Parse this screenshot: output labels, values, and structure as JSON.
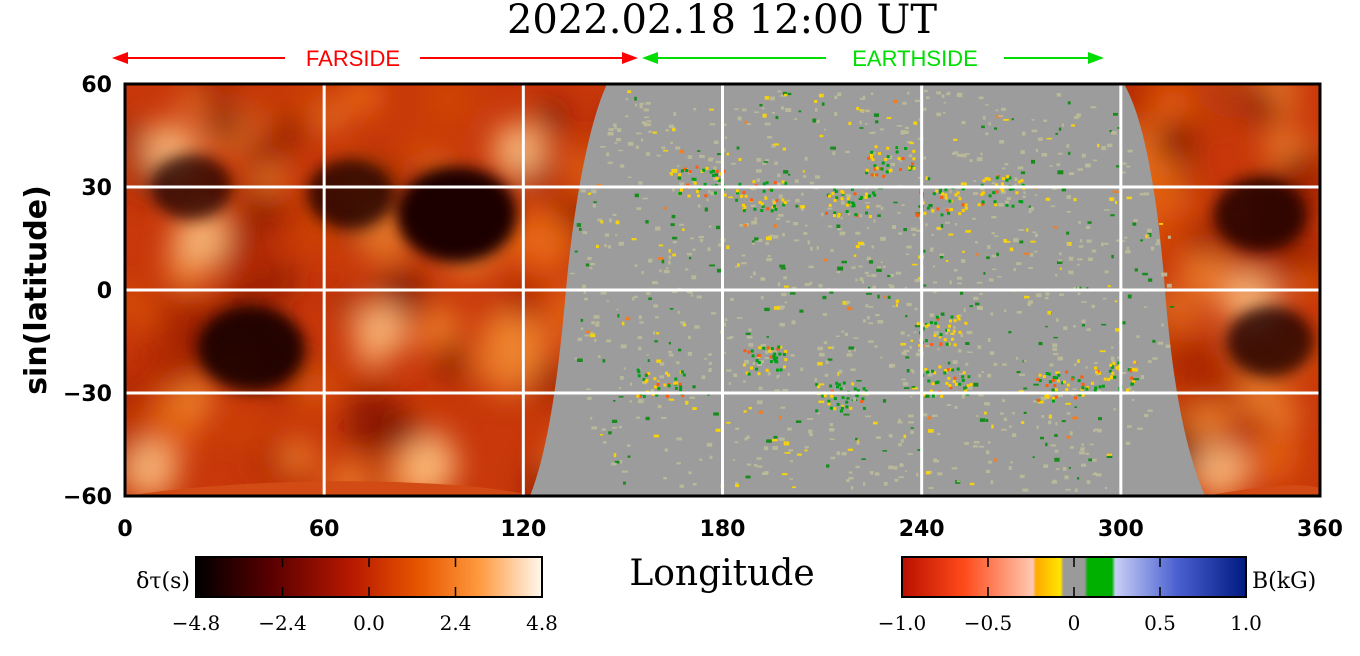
{
  "chart_data": {
    "type": "heatmap",
    "title": "2022.02.18 12:00 UT",
    "xlabel": "Longitude",
    "ylabel": "sin(latitude)",
    "xlim": [
      0,
      360
    ],
    "ylim": [
      -60,
      60
    ],
    "x_ticks": [
      "0",
      "60",
      "120",
      "180",
      "240",
      "300",
      "360"
    ],
    "y_ticks": [
      "60",
      "30",
      "0",
      "−30",
      "−60"
    ],
    "x_tick_values": [
      0,
      60,
      120,
      180,
      240,
      300,
      360
    ],
    "y_tick_values": [
      60,
      30,
      0,
      -30,
      -60
    ],
    "grid": true,
    "regions": [
      {
        "label": "FARSIDE",
        "from": 0,
        "to": 155,
        "color": "#ff0000"
      },
      {
        "label": "EARTHSIDE",
        "from": 158,
        "to": 295,
        "color": "#00dd00"
      }
    ],
    "farside_dark_spots": [
      {
        "lon": 100,
        "lat": 22,
        "strength": 1.0
      },
      {
        "lon": 38,
        "lat": -17,
        "strength": 0.8
      },
      {
        "lon": 342,
        "lat": 22,
        "strength": 0.6
      },
      {
        "lon": 345,
        "lat": -15,
        "strength": 0.5
      },
      {
        "lon": 68,
        "lat": 28,
        "strength": 0.5
      },
      {
        "lon": 20,
        "lat": 30,
        "strength": 0.4
      }
    ],
    "colorbars": [
      {
        "label": "δτ(s)",
        "ticks": [
          "−4.8",
          "−2.4",
          "0.0",
          "2.4",
          "4.8"
        ],
        "tick_values": [
          -4.8,
          -2.4,
          0,
          2.4,
          4.8
        ],
        "colors": [
          "#000000",
          "#5a0000",
          "#b81800",
          "#e85800",
          "#ff9a40",
          "#fff8ee"
        ]
      },
      {
        "label": "B(kG)",
        "ticks": [
          "−1.0",
          "−0.5",
          "0",
          "0.5",
          "1.0"
        ],
        "tick_values": [
          -1.0,
          -0.5,
          0,
          0.5,
          1.0
        ],
        "colors": [
          "#c81400",
          "#ff5a2a",
          "#ffc8b0",
          "#ffaa00",
          "#ffe000",
          "#9a9a9a",
          "#00b000",
          "#b8c0f0",
          "#4a60d0",
          "#001a80"
        ]
      }
    ]
  }
}
